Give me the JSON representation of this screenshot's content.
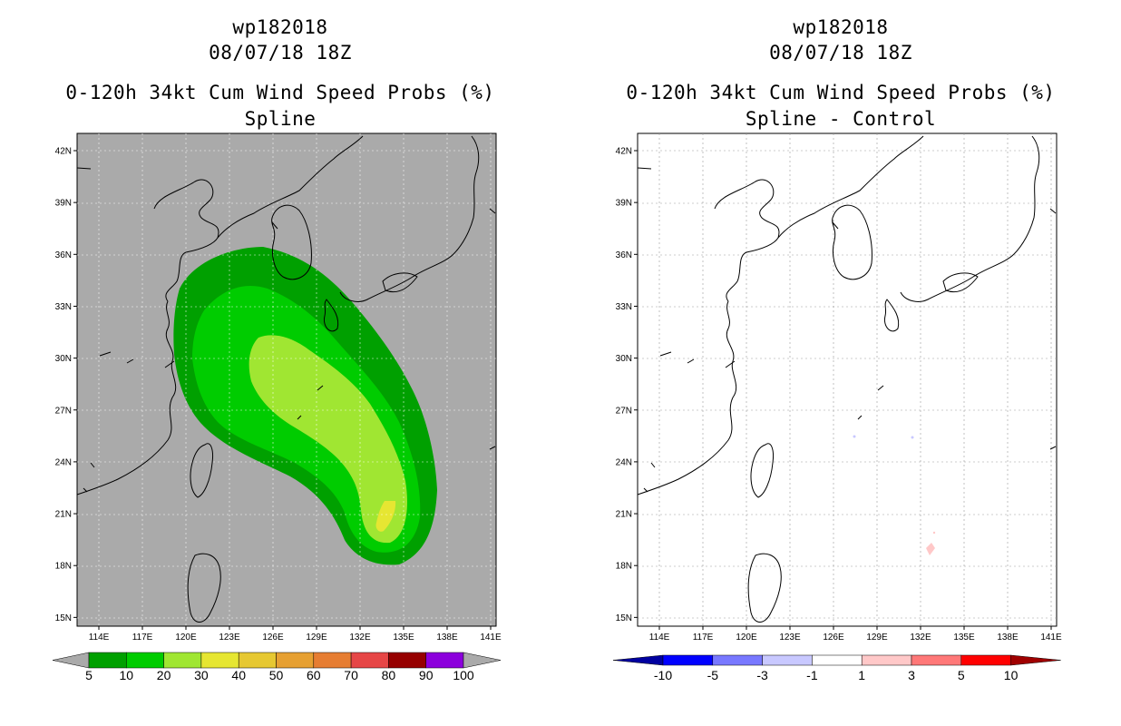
{
  "panels": [
    {
      "id": "left",
      "title_line1": "wp182018",
      "title_line2": "08/07/18 18Z",
      "title_line3": "0-120h 34kt Cum Wind Speed Probs (%)",
      "title_line4": "Spline",
      "background": "#aaaaaa",
      "colorbar": {
        "colors": [
          "#00a000",
          "#00cc00",
          "#a0e632",
          "#e6e632",
          "#e6c832",
          "#e6a032",
          "#e67d32",
          "#e64646",
          "#960000",
          "#8c00dc"
        ],
        "labels": [
          "5",
          "10",
          "20",
          "30",
          "40",
          "50",
          "60",
          "70",
          "80",
          "90",
          "100"
        ]
      }
    },
    {
      "id": "right",
      "title_line1": "wp182018",
      "title_line2": "08/07/18 18Z",
      "title_line3": "0-120h 34kt Cum Wind Speed Probs (%)",
      "title_line4": "Spline - Control",
      "background": "#ffffff",
      "colorbar": {
        "colors": [
          "#0000a0",
          "#0000ff",
          "#7878ff",
          "#c8c8ff",
          "#ffffff",
          "#ffc8c8",
          "#ff7878",
          "#ff0000",
          "#a00000"
        ],
        "labels": [
          "-10",
          "-5",
          "-3",
          "-1",
          "1",
          "3",
          "5",
          "10"
        ]
      }
    }
  ],
  "axes": {
    "x_labels": [
      "114E",
      "117E",
      "120E",
      "123E",
      "126E",
      "129E",
      "132E",
      "135E",
      "138E",
      "141E"
    ],
    "y_labels": [
      "42N",
      "39N",
      "36N",
      "33N",
      "30N",
      "27N",
      "24N",
      "21N",
      "18N",
      "15N"
    ]
  },
  "legend_colors": {
    "prob_5": "#00a000",
    "prob_10": "#00cc00",
    "prob_20": "#a0e632",
    "prob_30": "#e6e632",
    "diff_neg": "#c8c8ff",
    "diff_pos": "#ffc8c8",
    "coast": "#000000"
  }
}
